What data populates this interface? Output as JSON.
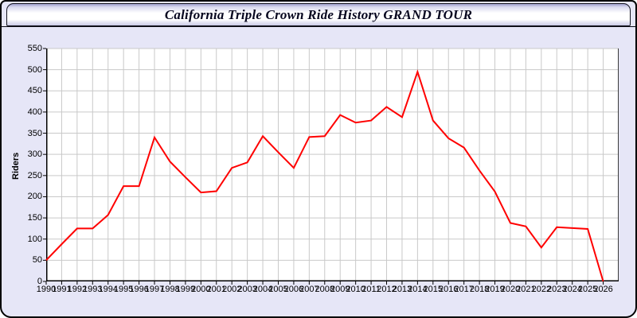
{
  "window": {
    "title": "California Triple Crown Ride History GRAND TOUR"
  },
  "colors": {
    "page_background": "#e6e6f7",
    "plot_background": "#ffffff",
    "gridline": "#c9c9c9",
    "axis": "#000000",
    "line": "#ff0000",
    "title_text": "#05051e",
    "tick_text": "#000000"
  },
  "chart_data": {
    "type": "line",
    "title": "California Triple Crown Ride History GRAND TOUR",
    "xlabel": "",
    "ylabel": "Riders",
    "x": [
      1990,
      1991,
      1992,
      1993,
      1994,
      1995,
      1996,
      1997,
      1998,
      1999,
      2000,
      2001,
      2002,
      2003,
      2004,
      2005,
      2006,
      2007,
      2008,
      2009,
      2010,
      2011,
      2012,
      2013,
      2014,
      2015,
      2016,
      2017,
      2018,
      2019,
      2020,
      2021,
      2022,
      2023,
      2024,
      2025,
      2026
    ],
    "series": [
      {
        "name": "Riders",
        "color": "#ff0000",
        "values": [
          50,
          88,
          125,
          125,
          157,
          225,
          225,
          340,
          283,
          246,
          210,
          213,
          268,
          281,
          343,
          305,
          268,
          341,
          343,
          393,
          375,
          380,
          412,
          388,
          495,
          380,
          338,
          316,
          262,
          212,
          138,
          130,
          80,
          128,
          126,
          124,
          0
        ]
      }
    ],
    "ylim": [
      0,
      550
    ],
    "y_tick_step": 50,
    "xlim": [
      1990,
      2027
    ],
    "grid": true,
    "legend_position": "none"
  }
}
